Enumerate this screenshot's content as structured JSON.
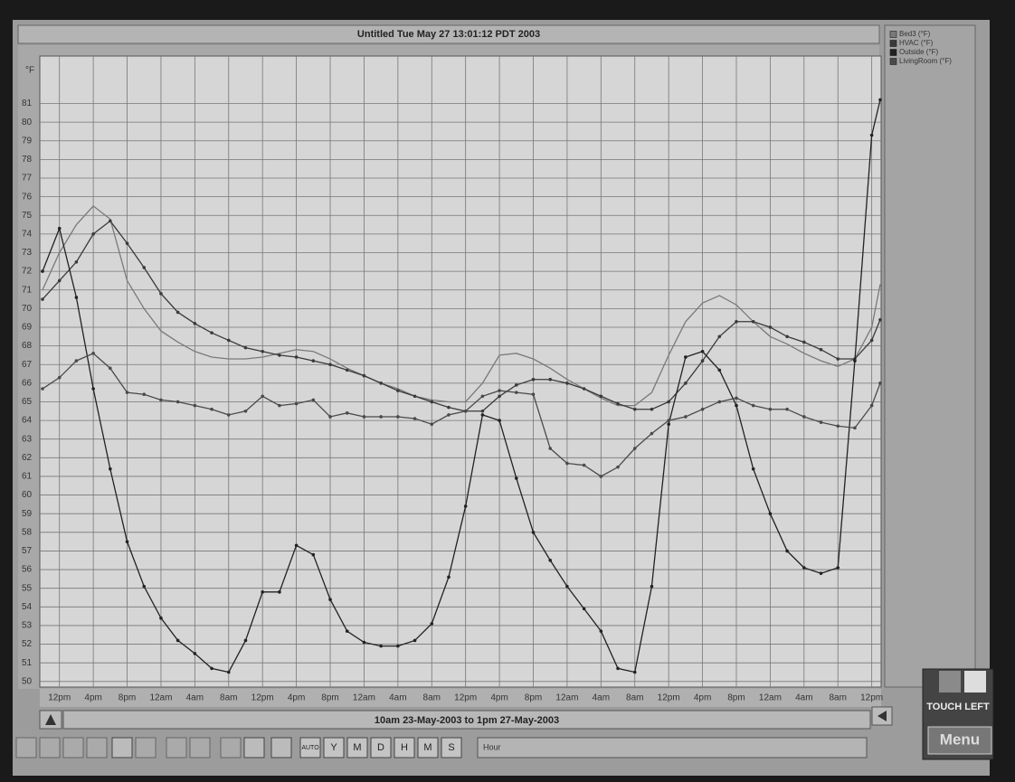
{
  "chart_data": {
    "type": "line",
    "title": "Untitled Tue May 27 13:01:12 PDT 2003",
    "subtitle": "10am 23-May-2003 to 1pm 27-May-2003",
    "y_label": "°F",
    "grid": true,
    "x": [
      0,
      2,
      4,
      6,
      8,
      10,
      12,
      14,
      16,
      18,
      20,
      22,
      24,
      26,
      28,
      30,
      32,
      34,
      36,
      38,
      40,
      42,
      44,
      46,
      48,
      50,
      52,
      54,
      56,
      58,
      60,
      62,
      64,
      66,
      68,
      70,
      72,
      74,
      76,
      78,
      80,
      82,
      84,
      86,
      88,
      90,
      92,
      94,
      96,
      98,
      99
    ],
    "xlim": [
      0,
      99
    ],
    "ylim": [
      49.7,
      83.4
    ],
    "xticks": [
      {
        "value": 2,
        "label": "12pm"
      },
      {
        "value": 6,
        "label": "4pm"
      },
      {
        "value": 10,
        "label": "8pm"
      },
      {
        "value": 14,
        "label": "12am"
      },
      {
        "value": 18,
        "label": "4am"
      },
      {
        "value": 22,
        "label": "8am"
      },
      {
        "value": 26,
        "label": "12pm"
      },
      {
        "value": 30,
        "label": "4pm"
      },
      {
        "value": 34,
        "label": "8pm"
      },
      {
        "value": 38,
        "label": "12am"
      },
      {
        "value": 42,
        "label": "4am"
      },
      {
        "value": 46,
        "label": "8am"
      },
      {
        "value": 50,
        "label": "12pm"
      },
      {
        "value": 54,
        "label": "4pm"
      },
      {
        "value": 58,
        "label": "8pm"
      },
      {
        "value": 62,
        "label": "12am"
      },
      {
        "value": 66,
        "label": "4am"
      },
      {
        "value": 70,
        "label": "8am"
      },
      {
        "value": 74,
        "label": "12pm"
      },
      {
        "value": 78,
        "label": "4pm"
      },
      {
        "value": 82,
        "label": "8pm"
      },
      {
        "value": 86,
        "label": "12am"
      },
      {
        "value": 90,
        "label": "4am"
      },
      {
        "value": 94,
        "label": "8am"
      },
      {
        "value": 98,
        "label": "12pm"
      }
    ],
    "yticks": [
      50,
      51,
      52,
      53,
      54,
      55,
      56,
      57,
      58,
      59,
      60,
      61,
      62,
      63,
      64,
      65,
      66,
      67,
      68,
      69,
      70,
      71,
      72,
      73,
      74,
      75,
      76,
      77,
      78,
      79,
      80,
      81
    ],
    "series": [
      {
        "name": "Bed3 (°F)",
        "color": "#7a7a7a",
        "markers": false,
        "values": [
          71.0,
          73.0,
          74.5,
          75.5,
          74.8,
          71.5,
          70.0,
          68.8,
          68.2,
          67.7,
          67.4,
          67.3,
          67.3,
          67.4,
          67.6,
          67.8,
          67.7,
          67.3,
          66.8,
          66.4,
          66.0,
          65.7,
          65.3,
          65.1,
          65.0,
          65.0,
          66.0,
          67.5,
          67.6,
          67.3,
          66.8,
          66.2,
          65.7,
          65.2,
          64.8,
          64.8,
          65.5,
          67.5,
          69.3,
          70.3,
          70.7,
          70.2,
          69.3,
          68.5,
          68.1,
          67.6,
          67.2,
          66.9,
          67.3,
          69.0,
          71.3
        ]
      },
      {
        "name": "HVAC (°F)",
        "color": "#3a3a3a",
        "markers": true,
        "values": [
          70.5,
          71.5,
          72.5,
          74.0,
          74.7,
          73.5,
          72.2,
          70.8,
          69.8,
          69.2,
          68.7,
          68.3,
          67.9,
          67.7,
          67.5,
          67.4,
          67.2,
          67.0,
          66.7,
          66.4,
          66.0,
          65.6,
          65.3,
          65.0,
          64.7,
          64.5,
          64.5,
          65.3,
          65.9,
          66.2,
          66.2,
          66.0,
          65.7,
          65.3,
          64.9,
          64.6,
          64.6,
          65.0,
          66.0,
          67.2,
          68.5,
          69.3,
          69.3,
          69.0,
          68.5,
          68.2,
          67.8,
          67.3,
          67.3,
          68.3,
          69.4
        ]
      },
      {
        "name": "Outside (°F)",
        "color": "#222222",
        "markers": true,
        "values": [
          72.0,
          74.3,
          70.6,
          65.7,
          61.4,
          57.5,
          55.1,
          53.4,
          52.2,
          51.5,
          50.7,
          50.5,
          52.2,
          54.8,
          54.8,
          57.3,
          56.8,
          54.4,
          52.7,
          52.1,
          51.9,
          51.9,
          52.2,
          53.1,
          55.6,
          59.4,
          64.3,
          64.0,
          60.9,
          58.0,
          56.5,
          55.1,
          53.9,
          52.7,
          50.7,
          50.5,
          55.1,
          63.8,
          67.4,
          67.7,
          66.7,
          64.8,
          61.4,
          59.0,
          57.0,
          56.1,
          55.8,
          56.1,
          67.2,
          79.3,
          81.2
        ]
      },
      {
        "name": "LivingRoom (°F)",
        "color": "#4a4a4a",
        "markers": true,
        "values": [
          65.7,
          66.3,
          67.2,
          67.6,
          66.8,
          65.5,
          65.4,
          65.1,
          65.0,
          64.8,
          64.6,
          64.3,
          64.5,
          65.3,
          64.8,
          64.9,
          65.1,
          64.2,
          64.4,
          64.2,
          64.2,
          64.2,
          64.1,
          63.8,
          64.3,
          64.5,
          65.3,
          65.6,
          65.5,
          65.4,
          62.5,
          61.7,
          61.6,
          61.0,
          61.5,
          62.5,
          63.3,
          64.0,
          64.2,
          64.6,
          65.0,
          65.2,
          64.8,
          64.6,
          64.6,
          64.2,
          63.9,
          63.7,
          63.6,
          64.8,
          66.0
        ]
      }
    ]
  },
  "toolbar": {
    "buttons": [
      "AUTO",
      "Y",
      "M",
      "D",
      "H",
      "M",
      "S"
    ],
    "field": "Hour"
  },
  "side": {
    "touch": "TOUCH LEFT",
    "menu": "Menu"
  }
}
